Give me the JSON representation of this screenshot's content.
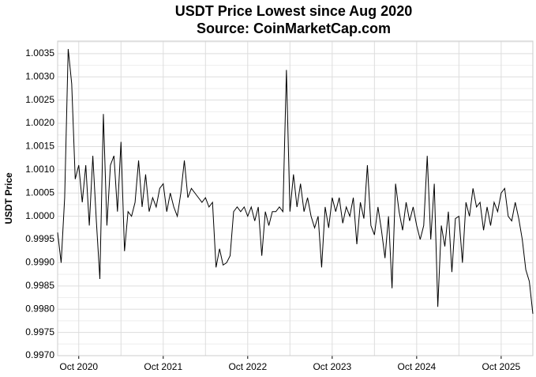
{
  "chart_data": {
    "type": "line",
    "title": "USDT Price Lowest since Aug 2020",
    "subtitle": "Source: CoinMarketCap.com",
    "y_label": "USDT Price",
    "color": "#000000",
    "grid": true,
    "categories": [
      null,
      null,
      null,
      null,
      null,
      null,
      "Oct 2020",
      null,
      null,
      null,
      null,
      null,
      null,
      null,
      null,
      null,
      null,
      null,
      null,
      null,
      null,
      null,
      null,
      null,
      null,
      null,
      null,
      null,
      null,
      null,
      "Oct 2021",
      null,
      null,
      null,
      null,
      null,
      null,
      null,
      null,
      null,
      null,
      null,
      null,
      null,
      null,
      null,
      null,
      null,
      null,
      null,
      null,
      null,
      null,
      null,
      "Oct 2022",
      null,
      null,
      null,
      null,
      null,
      null,
      null,
      null,
      null,
      null,
      null,
      null,
      null,
      null,
      null,
      null,
      null,
      null,
      null,
      null,
      null,
      null,
      null,
      "Oct 2023",
      null,
      null,
      null,
      null,
      null,
      null,
      null,
      null,
      null,
      null,
      null,
      null,
      null,
      null,
      null,
      null,
      null,
      null,
      null,
      null,
      null,
      null,
      null,
      "Oct 2024",
      null,
      null,
      null,
      null,
      null,
      null,
      null,
      null,
      null,
      null,
      null,
      null,
      null,
      null,
      null,
      null,
      null,
      null,
      null,
      null,
      null,
      null,
      null,
      "Oct 2025",
      null,
      null,
      null,
      null,
      null,
      null,
      null,
      null,
      null
    ],
    "values": [
      0.99965,
      0.999,
      1.0004,
      1.0036,
      1.00285,
      1.0008,
      1.0011,
      1.0003,
      1.0011,
      0.9998,
      1.0013,
      0.9999,
      0.99865,
      1.0022,
      0.9998,
      1.0011,
      1.0013,
      1.0001,
      1.0016,
      0.99925,
      1.0001,
      1.0,
      1.0003,
      1.0012,
      1.0002,
      1.0009,
      1.0001,
      1.0004,
      1.0002,
      1.0006,
      1.0007,
      1.0001,
      1.0005,
      1.0002,
      1.0,
      1.0005,
      1.0012,
      1.0004,
      1.0006,
      1.0005,
      1.0004,
      1.0003,
      1.0004,
      1.0002,
      1.0003,
      0.9989,
      0.9993,
      0.99895,
      0.999,
      0.99915,
      1.0001,
      1.0002,
      1.0001,
      1.0002,
      1.0,
      1.0002,
      0.9999,
      1.0002,
      0.99915,
      1.0001,
      0.9998,
      1.0001,
      1.0001,
      1.0002,
      1.0001,
      1.00315,
      1.0001,
      1.0009,
      1.0002,
      1.0007,
      1.0001,
      1.0004,
      1.0,
      0.99975,
      1.0,
      0.9989,
      1.0002,
      0.99975,
      1.0004,
      1.0001,
      1.0004,
      0.99985,
      1.0002,
      1.0,
      1.0004,
      0.9994,
      1.0003,
      0.99995,
      1.0011,
      0.9998,
      0.9996,
      1.0002,
      0.9997,
      0.9991,
      1.0,
      0.99845,
      1.0007,
      1.0001,
      0.9997,
      1.0003,
      0.9999,
      1.0002,
      0.9998,
      0.9995,
      0.9998,
      1.0013,
      0.9995,
      1.0007,
      0.99805,
      0.9998,
      0.99935,
      1.0001,
      0.9988,
      0.99995,
      1.0,
      0.999,
      1.0003,
      1.0,
      1.0006,
      1.0002,
      1.0003,
      0.9997,
      1.0002,
      0.9998,
      1.0003,
      1.0001,
      1.0005,
      1.0006,
      1.0,
      0.9999,
      1.0003,
      0.99995,
      0.9995,
      0.99885,
      0.9986,
      0.9979
    ],
    "ylim": [
      0.997,
      1.00377
    ],
    "yticks": [
      {
        "value": 0.997,
        "label": "0.9970"
      },
      {
        "value": 0.9975,
        "label": "0.9975"
      },
      {
        "value": 0.998,
        "label": "0.9980"
      },
      {
        "value": 0.9985,
        "label": "0.9985"
      },
      {
        "value": 0.999,
        "label": "0.9990"
      },
      {
        "value": 0.9995,
        "label": "0.9995"
      },
      {
        "value": 1,
        "label": "1.0000"
      },
      {
        "value": 1.0005,
        "label": "1.0005"
      },
      {
        "value": 1.001,
        "label": "1.0010"
      },
      {
        "value": 1.0015,
        "label": "1.0015"
      },
      {
        "value": 1.002,
        "label": "1.0020"
      },
      {
        "value": 1.0025,
        "label": "1.0025"
      },
      {
        "value": 1.003,
        "label": "1.0030"
      },
      {
        "value": 1.0035,
        "label": "1.0035"
      }
    ]
  }
}
